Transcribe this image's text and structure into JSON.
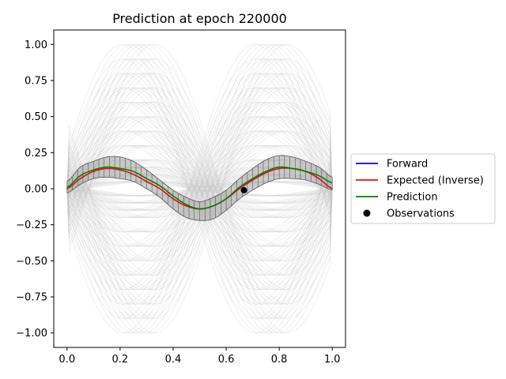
{
  "chart_data": {
    "type": "line",
    "title": "Prediction at epoch 220000",
    "xlabel": "",
    "ylabel": "",
    "xlim": [
      -0.05,
      1.05
    ],
    "ylim": [
      -1.1,
      1.1
    ],
    "x_ticks": [
      0.0,
      0.2,
      0.4,
      0.6,
      0.8,
      1.0
    ],
    "x_tick_labels": [
      "0.0",
      "0.2",
      "0.4",
      "0.6",
      "0.8",
      "1.0"
    ],
    "y_ticks": [
      1.0,
      0.75,
      0.5,
      0.25,
      0.0,
      -0.25,
      -0.5,
      -0.75,
      -1.0
    ],
    "y_tick_labels": [
      "1.00",
      "0.75",
      "0.50",
      "0.25",
      "0.00",
      "−0.25",
      "−0.50",
      "−0.75",
      "−1.00"
    ],
    "grid": false,
    "legend_placement": "center-right outside axes",
    "colors": {
      "forward": "#0000ff",
      "expected": "#e01010",
      "prediction": "#008000",
      "observations": "#000000",
      "samples": "#c8c8c8",
      "band": "#a0a0a0"
    },
    "series": [
      {
        "name": "Forward",
        "color": "#0000ff",
        "x": [],
        "y": []
      },
      {
        "name": "Expected (Inverse)",
        "color": "#e01010",
        "x": [
          0.0,
          0.05,
          0.1,
          0.15,
          0.2,
          0.25,
          0.3,
          0.35,
          0.4,
          0.45,
          0.5,
          0.55,
          0.6,
          0.65,
          0.7,
          0.75,
          0.8,
          0.85,
          0.9,
          0.95,
          1.0
        ],
        "y": [
          0.0,
          0.07,
          0.12,
          0.14,
          0.13,
          0.1,
          0.05,
          0.0,
          -0.07,
          -0.12,
          -0.14,
          -0.12,
          -0.07,
          0.0,
          0.06,
          0.11,
          0.14,
          0.14,
          0.12,
          0.07,
          0.0
        ]
      },
      {
        "name": "Prediction",
        "color": "#008000",
        "x": [
          0.0,
          0.05,
          0.1,
          0.15,
          0.2,
          0.25,
          0.3,
          0.35,
          0.4,
          0.45,
          0.5,
          0.55,
          0.6,
          0.65,
          0.7,
          0.75,
          0.8,
          0.85,
          0.9,
          0.95,
          1.0
        ],
        "y": [
          0.01,
          0.09,
          0.13,
          0.15,
          0.14,
          0.12,
          0.07,
          0.02,
          -0.05,
          -0.11,
          -0.14,
          -0.12,
          -0.07,
          0.01,
          0.07,
          0.12,
          0.15,
          0.14,
          0.12,
          0.09,
          0.04
        ]
      }
    ],
    "uncertainty_band": {
      "x": [
        0.0,
        0.05,
        0.1,
        0.15,
        0.2,
        0.25,
        0.3,
        0.35,
        0.4,
        0.45,
        0.5,
        0.55,
        0.6,
        0.65,
        0.7,
        0.75,
        0.8,
        0.85,
        0.9,
        0.95,
        1.0
      ],
      "lower": [
        -0.03,
        0.03,
        0.07,
        0.08,
        0.07,
        0.05,
        0.0,
        -0.06,
        -0.14,
        -0.2,
        -0.22,
        -0.21,
        -0.15,
        -0.07,
        -0.01,
        0.04,
        0.07,
        0.07,
        0.06,
        0.03,
        -0.01
      ],
      "upper": [
        0.05,
        0.15,
        0.19,
        0.22,
        0.22,
        0.19,
        0.13,
        0.06,
        -0.01,
        -0.06,
        -0.09,
        -0.06,
        -0.01,
        0.07,
        0.14,
        0.2,
        0.23,
        0.22,
        0.19,
        0.15,
        0.08
      ]
    },
    "observations": {
      "name": "Observations",
      "x": [
        0.667
      ],
      "y": [
        -0.01
      ]
    },
    "background_samples": {
      "description_free": true,
      "amplitudes": [
        1.0,
        0.9,
        0.8,
        0.7,
        0.6,
        0.5,
        0.4,
        0.3,
        0.2,
        0.15,
        0.1,
        0.05
      ],
      "phase_shifts": [
        0.0,
        0.02,
        0.04,
        0.06,
        0.08,
        -0.02,
        -0.04
      ]
    },
    "legend": [
      {
        "label": "Forward",
        "kind": "line",
        "color": "#0000ff"
      },
      {
        "label": "Expected (Inverse)",
        "kind": "line",
        "color": "#e01010"
      },
      {
        "label": "Prediction",
        "kind": "line",
        "color": "#008000"
      },
      {
        "label": "Observations",
        "kind": "marker",
        "color": "#000000"
      }
    ]
  }
}
